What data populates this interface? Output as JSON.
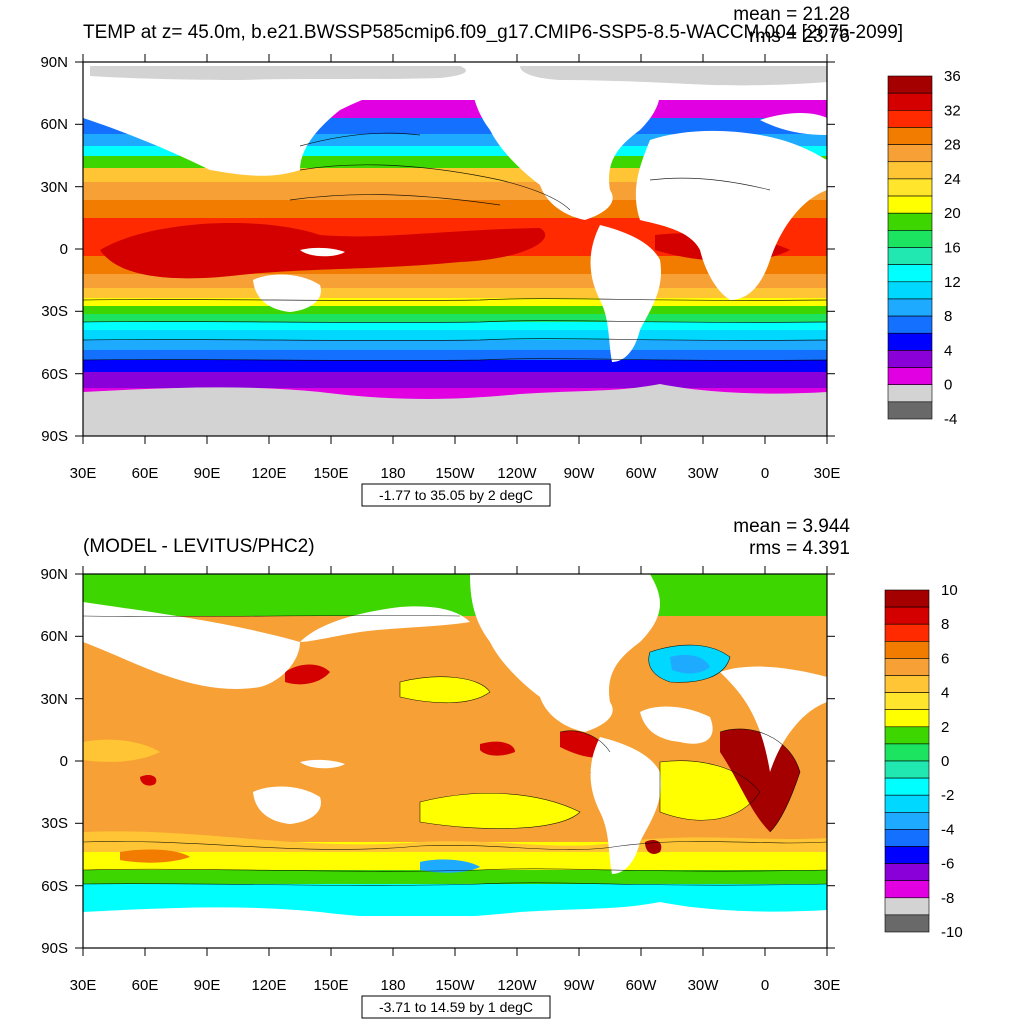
{
  "panels": [
    {
      "title": "TEMP at z=  45.0m, b.e21.BWSSP585cmip6.f09_g17.CMIP6-SSP5-8.5-WACCM.004 [2075-2099]",
      "mean_text": "mean = 21.28",
      "rms_text": "rms = 23.76",
      "range_text": "-1.77 to 35.05 by 2 degC",
      "lat_labels": [
        "90N",
        "60N",
        "30N",
        "0",
        "30S",
        "60S",
        "90S"
      ],
      "lon_labels": [
        "30E",
        "60E",
        "90E",
        "120E",
        "150E",
        "180",
        "150W",
        "120W",
        "90W",
        "60W",
        "30W",
        "0",
        "30E"
      ],
      "colorbar": {
        "labels": [
          "36",
          "32",
          "28",
          "24",
          "20",
          "16",
          "12",
          "8",
          "4",
          "0",
          "-4"
        ],
        "colors": [
          "#a50000",
          "#d40000",
          "#ff2a00",
          "#f27c00",
          "#f7a035",
          "#ffc535",
          "#ffe52b",
          "#ffff00",
          "#3dd600",
          "#1de460",
          "#20e8b0",
          "#00ffff",
          "#00d8ff",
          "#1eaaff",
          "#1470ff",
          "#0000ff",
          "#8a00d8",
          "#e100e1",
          "#d3d3d3",
          "#696969"
        ]
      }
    },
    {
      "title": "(MODEL - LEVITUS/PHC2)",
      "mean_text": "mean = 3.944",
      "rms_text": "rms = 4.391",
      "range_text": "-3.71 to 14.59 by 1 degC",
      "lat_labels": [
        "90N",
        "60N",
        "30N",
        "0",
        "30S",
        "60S",
        "90S"
      ],
      "lon_labels": [
        "30E",
        "60E",
        "90E",
        "120E",
        "150E",
        "180",
        "150W",
        "120W",
        "90W",
        "60W",
        "30W",
        "0",
        "30E"
      ],
      "colorbar": {
        "labels": [
          "10",
          "8",
          "6",
          "4",
          "2",
          "0",
          "-2",
          "-4",
          "-6",
          "-8",
          "-10"
        ],
        "colors": [
          "#a50000",
          "#d40000",
          "#ff2a00",
          "#f27c00",
          "#f7a035",
          "#ffc535",
          "#ffe52b",
          "#ffff00",
          "#3dd600",
          "#1de460",
          "#20e8b0",
          "#00ffff",
          "#00d8ff",
          "#1eaaff",
          "#1470ff",
          "#0000ff",
          "#8a00d8",
          "#e100e1",
          "#d3d3d3",
          "#696969"
        ]
      }
    }
  ]
}
